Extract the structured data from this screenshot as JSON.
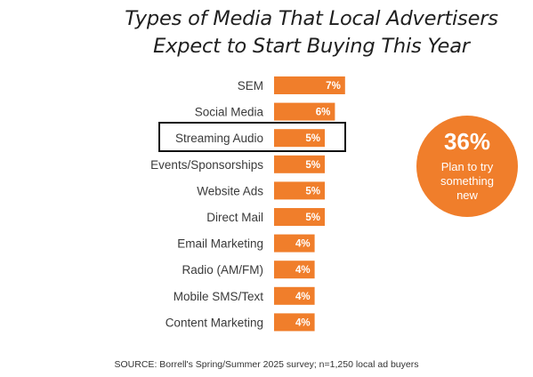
{
  "title_lines": [
    "Types of Media That Local Advertisers",
    "Expect to Start Buying This Year"
  ],
  "chart_data": {
    "type": "bar",
    "orientation": "horizontal",
    "categories": [
      "SEM",
      "Social Media",
      "Streaming Audio",
      "Events/Sponsorships",
      "Website Ads",
      "Direct Mail",
      "Email Marketing",
      "Radio (AM/FM)",
      "Mobile SMS/Text",
      "Content Marketing"
    ],
    "values": [
      7,
      6,
      5,
      5,
      5,
      5,
      4,
      4,
      4,
      4
    ],
    "value_labels": [
      "7%",
      "6%",
      "5%",
      "5%",
      "5%",
      "5%",
      "4%",
      "4%",
      "4%",
      "4%"
    ],
    "unit": "%",
    "highlighted_category": "Streaming Audio",
    "bar_color": "#f07e2b",
    "grid": false,
    "legend": "none"
  },
  "callout": {
    "value": "36%",
    "text": "Plan to try something new",
    "color": "#f07e2b"
  },
  "source": "SOURCE:  Borrell's Spring/Summer 2025 survey; n=1,250 local ad buyers"
}
